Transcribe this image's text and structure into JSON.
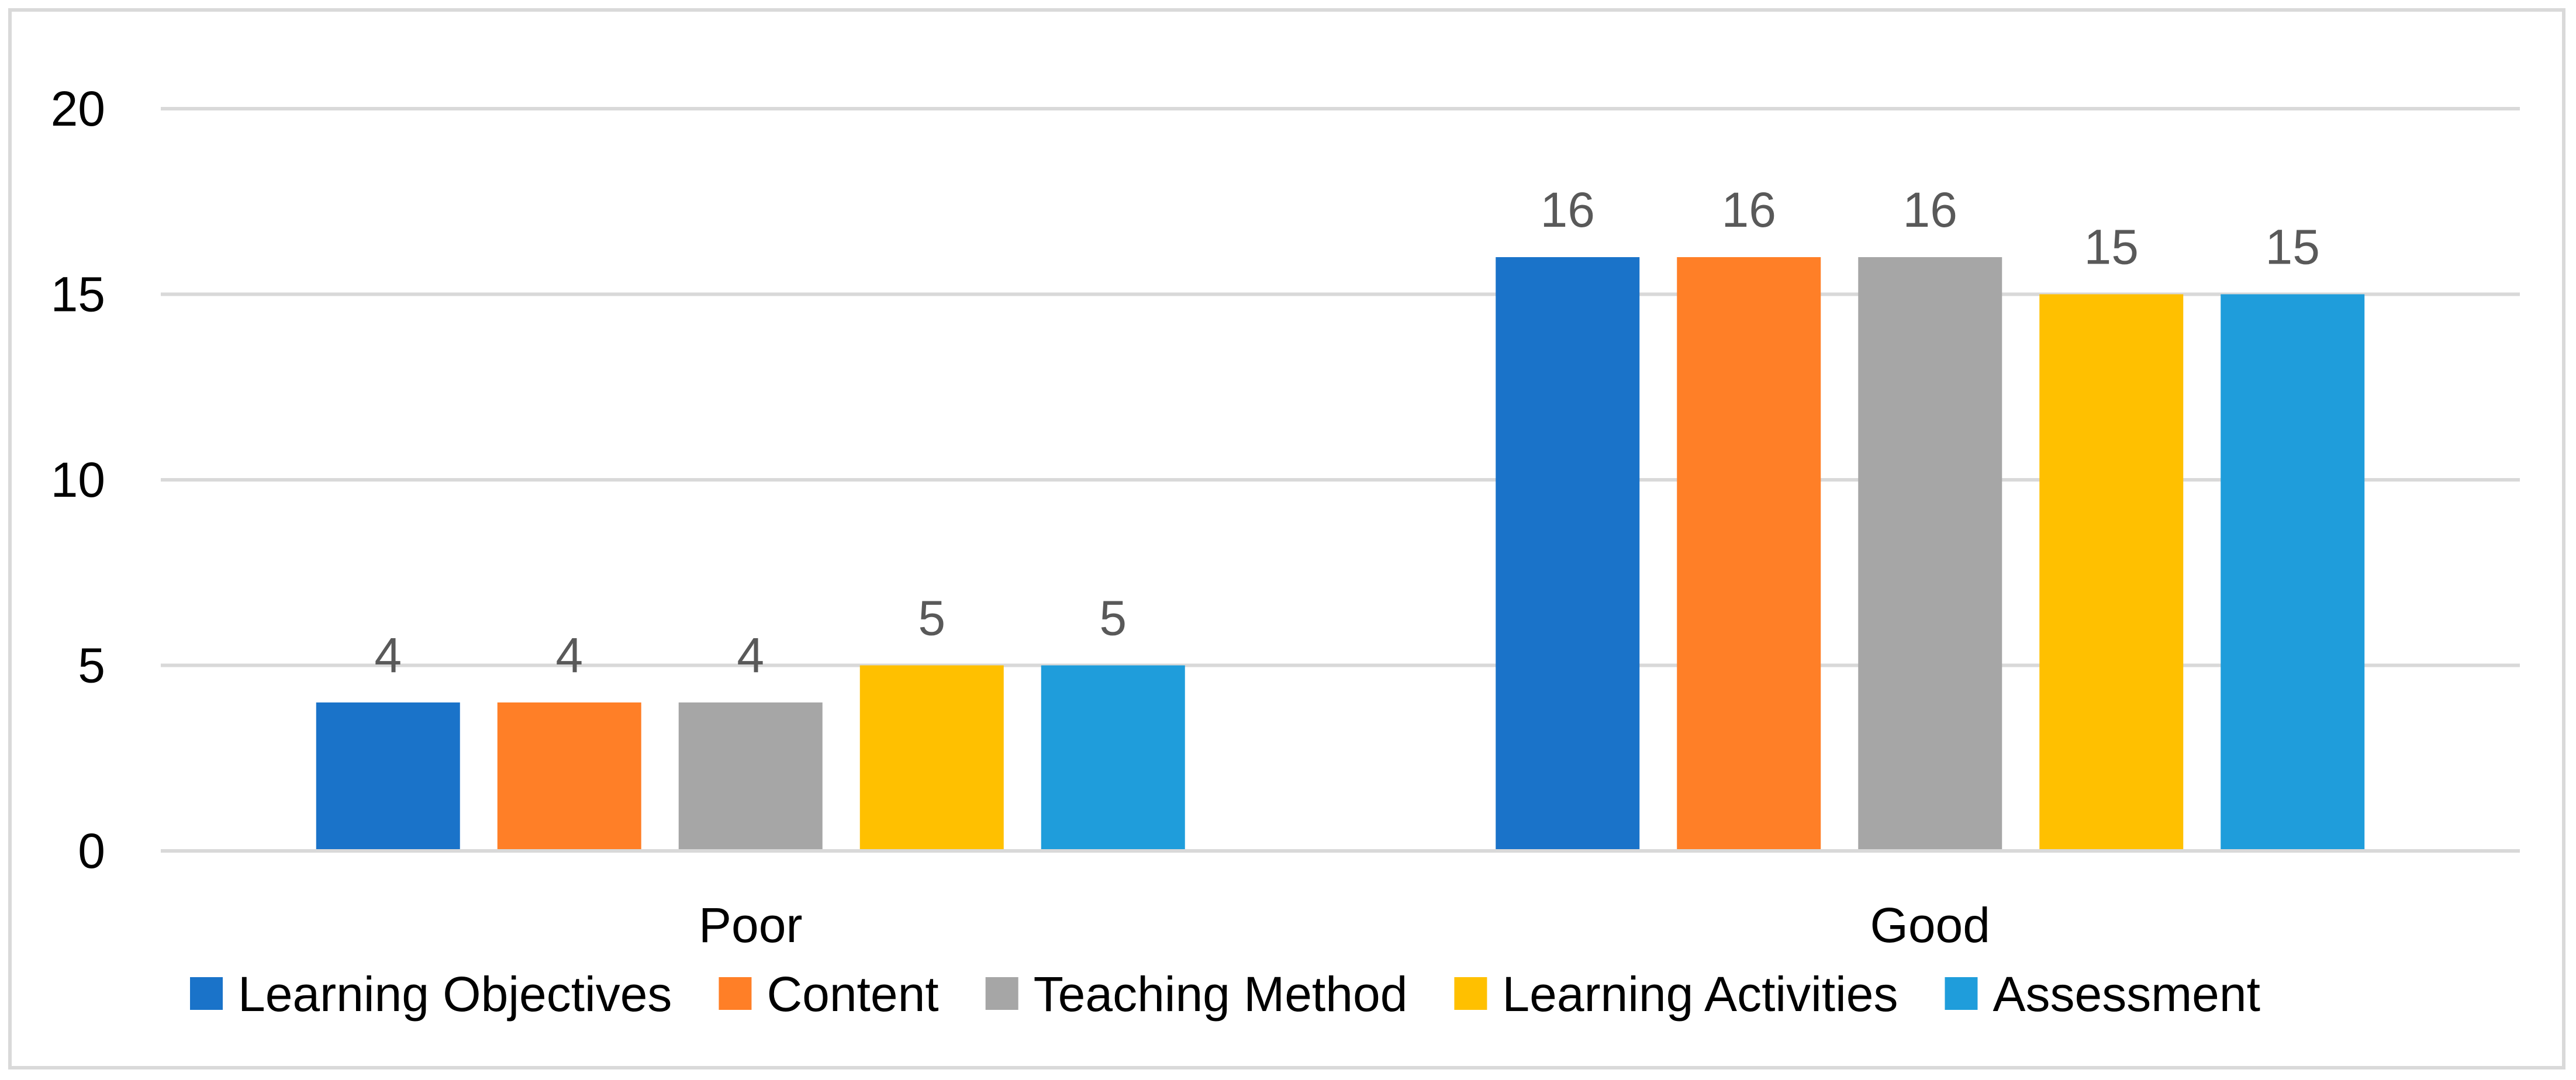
{
  "chart_data": {
    "type": "bar",
    "title": "",
    "xlabel": "",
    "ylabel": "",
    "categories": [
      "Poor",
      "Good"
    ],
    "series": [
      {
        "name": "Learning Objectives",
        "color": "#1a73c9",
        "values": [
          4,
          16
        ]
      },
      {
        "name": "Content",
        "color": "#ff7f27",
        "values": [
          4,
          16
        ]
      },
      {
        "name": "Teaching Method",
        "color": "#a6a6a6",
        "values": [
          4,
          16
        ]
      },
      {
        "name": "Learning Activities",
        "color": "#ffc000",
        "values": [
          5,
          15
        ]
      },
      {
        "name": "Assessment",
        "color": "#1f9ddb",
        "values": [
          5,
          15
        ]
      }
    ],
    "ylim": [
      0,
      20
    ],
    "yticks": [
      0,
      5,
      10,
      15,
      20
    ],
    "grid": true,
    "data_labels": true,
    "legend_position": "bottom"
  }
}
